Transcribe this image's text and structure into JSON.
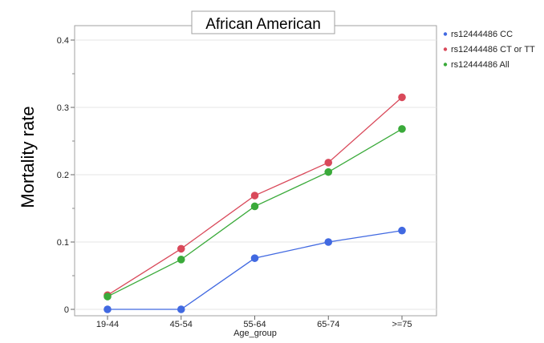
{
  "chart_data": {
    "type": "line",
    "title": "African American",
    "xlabel": "Age_group",
    "ylabel": "Mortality rate",
    "categories": [
      "19-44",
      "45-54",
      "55-64",
      "65-74",
      ">=75"
    ],
    "ylim": [
      0,
      0.42
    ],
    "yticks": [
      0,
      0.1,
      0.2,
      0.3,
      0.4
    ],
    "ytick_labels": [
      "0",
      "0.1",
      "0.2",
      "0.3",
      "0.4"
    ],
    "grid": true,
    "legend_position": "right",
    "series": [
      {
        "name": "rs12444486 CC",
        "color": "#4169E1",
        "values": [
          0.0,
          0.0,
          0.076,
          0.1,
          0.117
        ]
      },
      {
        "name": "rs12444486 CT or TT",
        "color": "#D9495A",
        "values": [
          0.021,
          0.09,
          0.169,
          0.218,
          0.315
        ]
      },
      {
        "name": "rs12444486 All",
        "color": "#3AAA3A",
        "values": [
          0.019,
          0.074,
          0.153,
          0.204,
          0.268
        ]
      }
    ]
  }
}
